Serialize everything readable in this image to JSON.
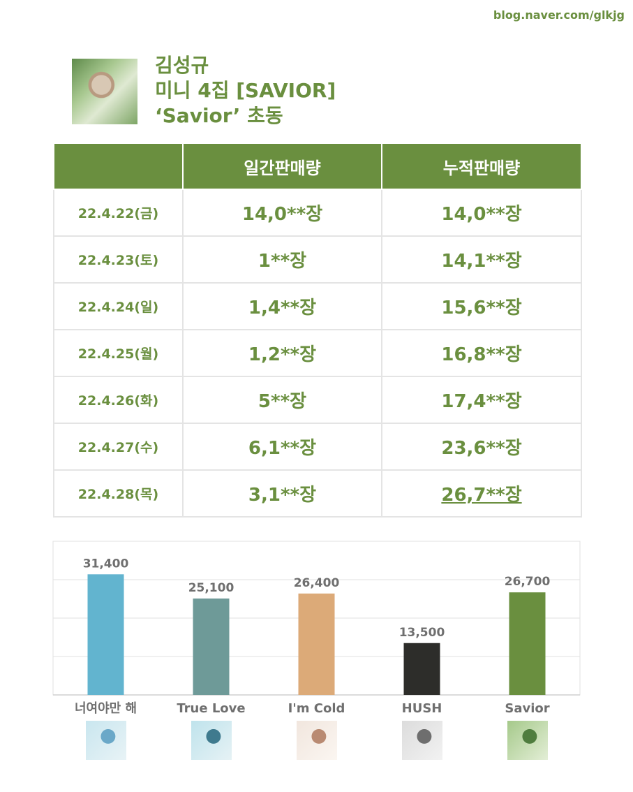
{
  "watermark": "blog.naver.com/glkjg",
  "title": {
    "line1": "김성규",
    "line2": "미니 4집 [SAVIOR]",
    "line3": "‘Savior’ 초동"
  },
  "table": {
    "headers": [
      "",
      "일간판매량",
      "누적판매량"
    ],
    "rows": [
      {
        "date": "22.4.22(금)",
        "daily": "14,0**장",
        "total": "14,0**장"
      },
      {
        "date": "22.4.23(토)",
        "daily": "1**장",
        "total": "14,1**장"
      },
      {
        "date": "22.4.24(일)",
        "daily": "1,4**장",
        "total": "15,6**장"
      },
      {
        "date": "22.4.25(월)",
        "daily": "1,2**장",
        "total": "16,8**장"
      },
      {
        "date": "22.4.26(화)",
        "daily": "5**장",
        "total": "17,4**장"
      },
      {
        "date": "22.4.27(수)",
        "daily": "6,1**장",
        "total": "23,6**장"
      },
      {
        "date": "22.4.28(목)",
        "daily": "3,1**장",
        "total": "26,7**장"
      }
    ]
  },
  "chart_data": {
    "type": "bar",
    "categories": [
      "너여야만 해",
      "True Love",
      "I'm Cold",
      "HUSH",
      "Savior"
    ],
    "values": [
      31400,
      25100,
      26400,
      13500,
      26700
    ],
    "value_labels": [
      "31,400",
      "25,100",
      "26,400",
      "13,500",
      "26,700"
    ],
    "colors": [
      "#62b4cf",
      "#6e9a98",
      "#dcaa78",
      "#2d2d2a",
      "#6a8f3f"
    ],
    "ylim": [
      0,
      40000
    ],
    "grid": true,
    "legend": "none",
    "title": "",
    "xlabel": "",
    "ylabel": ""
  },
  "thumbnails": [
    {
      "icon": "album-cover-1",
      "colors": [
        "#c9e6ef",
        "#6aa8c8",
        "#e8f3f6"
      ]
    },
    {
      "icon": "album-cover-2",
      "colors": [
        "#bfe3ec",
        "#3f7a8e",
        "#e6f2f5"
      ]
    },
    {
      "icon": "album-cover-3",
      "colors": [
        "#f1e6de",
        "#b98a72",
        "#fbf6f1"
      ]
    },
    {
      "icon": "album-cover-4",
      "colors": [
        "#dcdcdc",
        "#6e6e6e",
        "#f2f2f2"
      ]
    },
    {
      "icon": "album-cover-5",
      "colors": [
        "#a5c98a",
        "#4f7d3e",
        "#e3eed6"
      ]
    }
  ]
}
